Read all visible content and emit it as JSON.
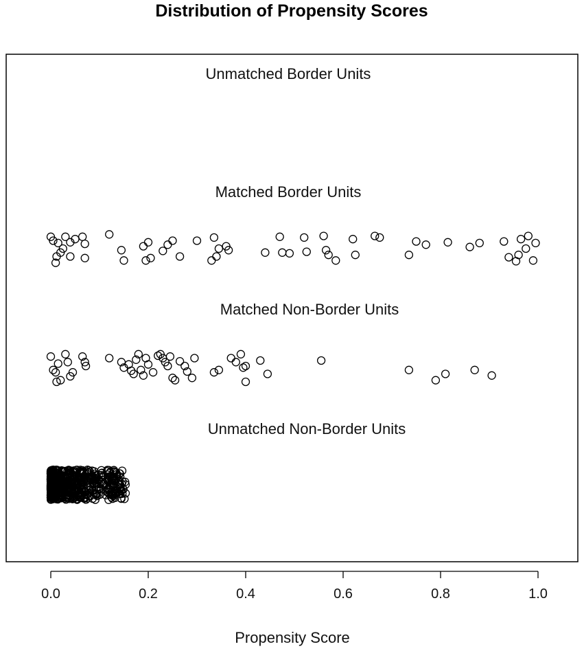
{
  "chart_data": {
    "type": "scatter",
    "title": "Distribution of Propensity Scores",
    "xlabel": "Propensity Score",
    "ylabel": "",
    "xlim": [
      0.0,
      1.0
    ],
    "x_ticks": [
      "0.0",
      "0.2",
      "0.4",
      "0.6",
      "0.8",
      "1.0"
    ],
    "grid": false,
    "legend": "none",
    "marker": "open circle",
    "point_color": "#000000",
    "groups": [
      {
        "label": "Unmatched Border Units",
        "values": []
      },
      {
        "label": "Matched Border Units",
        "values": [
          {
            "x": 0.0,
            "y": 0.15
          },
          {
            "x": 0.005,
            "y": 0.1
          },
          {
            "x": 0.015,
            "y": 0.07
          },
          {
            "x": 0.02,
            "y": -0.05
          },
          {
            "x": 0.025,
            "y": 0.0
          },
          {
            "x": 0.03,
            "y": 0.15
          },
          {
            "x": 0.04,
            "y": 0.08
          },
          {
            "x": 0.04,
            "y": -0.1
          },
          {
            "x": 0.05,
            "y": 0.12
          },
          {
            "x": 0.065,
            "y": 0.15
          },
          {
            "x": 0.07,
            "y": 0.06
          },
          {
            "x": 0.07,
            "y": -0.12
          },
          {
            "x": 0.012,
            "y": -0.1
          },
          {
            "x": 0.01,
            "y": -0.18
          },
          {
            "x": 0.12,
            "y": 0.18
          },
          {
            "x": 0.145,
            "y": -0.02
          },
          {
            "x": 0.15,
            "y": -0.15
          },
          {
            "x": 0.19,
            "y": 0.03
          },
          {
            "x": 0.195,
            "y": -0.15
          },
          {
            "x": 0.2,
            "y": 0.08
          },
          {
            "x": 0.205,
            "y": -0.12
          },
          {
            "x": 0.23,
            "y": -0.03
          },
          {
            "x": 0.24,
            "y": 0.05
          },
          {
            "x": 0.25,
            "y": 0.1
          },
          {
            "x": 0.265,
            "y": -0.1
          },
          {
            "x": 0.3,
            "y": 0.1
          },
          {
            "x": 0.33,
            "y": -0.15
          },
          {
            "x": 0.335,
            "y": 0.14
          },
          {
            "x": 0.34,
            "y": -0.1
          },
          {
            "x": 0.345,
            "y": 0.0
          },
          {
            "x": 0.36,
            "y": 0.03
          },
          {
            "x": 0.365,
            "y": -0.02
          },
          {
            "x": 0.44,
            "y": -0.05
          },
          {
            "x": 0.47,
            "y": 0.15
          },
          {
            "x": 0.475,
            "y": -0.05
          },
          {
            "x": 0.49,
            "y": -0.06
          },
          {
            "x": 0.52,
            "y": 0.14
          },
          {
            "x": 0.525,
            "y": -0.04
          },
          {
            "x": 0.56,
            "y": 0.16
          },
          {
            "x": 0.565,
            "y": -0.02
          },
          {
            "x": 0.57,
            "y": -0.08
          },
          {
            "x": 0.585,
            "y": -0.15
          },
          {
            "x": 0.62,
            "y": 0.12
          },
          {
            "x": 0.625,
            "y": -0.08
          },
          {
            "x": 0.665,
            "y": 0.16
          },
          {
            "x": 0.675,
            "y": 0.14
          },
          {
            "x": 0.735,
            "y": -0.08
          },
          {
            "x": 0.75,
            "y": 0.09
          },
          {
            "x": 0.77,
            "y": 0.05
          },
          {
            "x": 0.815,
            "y": 0.08
          },
          {
            "x": 0.86,
            "y": 0.02
          },
          {
            "x": 0.88,
            "y": 0.07
          },
          {
            "x": 0.93,
            "y": 0.09
          },
          {
            "x": 0.94,
            "y": -0.11
          },
          {
            "x": 0.955,
            "y": -0.16
          },
          {
            "x": 0.96,
            "y": -0.08
          },
          {
            "x": 0.965,
            "y": 0.12
          },
          {
            "x": 0.975,
            "y": 0.0
          },
          {
            "x": 0.98,
            "y": 0.16
          },
          {
            "x": 0.99,
            "y": -0.15
          },
          {
            "x": 0.995,
            "y": 0.07
          }
        ]
      },
      {
        "label": "Matched Non-Border Units",
        "values": [
          {
            "x": 0.0,
            "y": 0.12
          },
          {
            "x": 0.005,
            "y": -0.05
          },
          {
            "x": 0.01,
            "y": -0.08
          },
          {
            "x": 0.012,
            "y": -0.2
          },
          {
            "x": 0.015,
            "y": 0.03
          },
          {
            "x": 0.02,
            "y": -0.18
          },
          {
            "x": 0.03,
            "y": 0.15
          },
          {
            "x": 0.035,
            "y": 0.05
          },
          {
            "x": 0.04,
            "y": -0.13
          },
          {
            "x": 0.045,
            "y": -0.08
          },
          {
            "x": 0.065,
            "y": 0.12
          },
          {
            "x": 0.07,
            "y": 0.05
          },
          {
            "x": 0.072,
            "y": 0.0
          },
          {
            "x": 0.12,
            "y": 0.1
          },
          {
            "x": 0.145,
            "y": 0.05
          },
          {
            "x": 0.15,
            "y": -0.02
          },
          {
            "x": 0.16,
            "y": 0.02
          },
          {
            "x": 0.165,
            "y": -0.06
          },
          {
            "x": 0.17,
            "y": -0.1
          },
          {
            "x": 0.175,
            "y": 0.08
          },
          {
            "x": 0.18,
            "y": 0.15
          },
          {
            "x": 0.185,
            "y": -0.05
          },
          {
            "x": 0.19,
            "y": -0.12
          },
          {
            "x": 0.195,
            "y": 0.1
          },
          {
            "x": 0.2,
            "y": 0.02
          },
          {
            "x": 0.21,
            "y": -0.08
          },
          {
            "x": 0.22,
            "y": 0.13
          },
          {
            "x": 0.225,
            "y": 0.15
          },
          {
            "x": 0.23,
            "y": 0.1
          },
          {
            "x": 0.235,
            "y": 0.05
          },
          {
            "x": 0.24,
            "y": 0.0
          },
          {
            "x": 0.245,
            "y": 0.12
          },
          {
            "x": 0.25,
            "y": -0.15
          },
          {
            "x": 0.255,
            "y": -0.18
          },
          {
            "x": 0.265,
            "y": 0.06
          },
          {
            "x": 0.275,
            "y": 0.0
          },
          {
            "x": 0.28,
            "y": -0.07
          },
          {
            "x": 0.29,
            "y": -0.15
          },
          {
            "x": 0.295,
            "y": 0.1
          },
          {
            "x": 0.335,
            "y": -0.08
          },
          {
            "x": 0.345,
            "y": -0.05
          },
          {
            "x": 0.37,
            "y": 0.1
          },
          {
            "x": 0.38,
            "y": 0.05
          },
          {
            "x": 0.39,
            "y": 0.15
          },
          {
            "x": 0.395,
            "y": -0.02
          },
          {
            "x": 0.4,
            "y": 0.0
          },
          {
            "x": 0.4,
            "y": -0.2
          },
          {
            "x": 0.43,
            "y": 0.07
          },
          {
            "x": 0.445,
            "y": -0.1
          },
          {
            "x": 0.555,
            "y": 0.07
          },
          {
            "x": 0.735,
            "y": -0.05
          },
          {
            "x": 0.79,
            "y": -0.18
          },
          {
            "x": 0.81,
            "y": -0.1
          },
          {
            "x": 0.87,
            "y": -0.05
          },
          {
            "x": 0.905,
            "y": -0.12
          }
        ]
      },
      {
        "label": "Unmatched Non-Border Units",
        "x_range": [
          0.0,
          0.155
        ],
        "n_points": 600,
        "values": []
      }
    ]
  }
}
